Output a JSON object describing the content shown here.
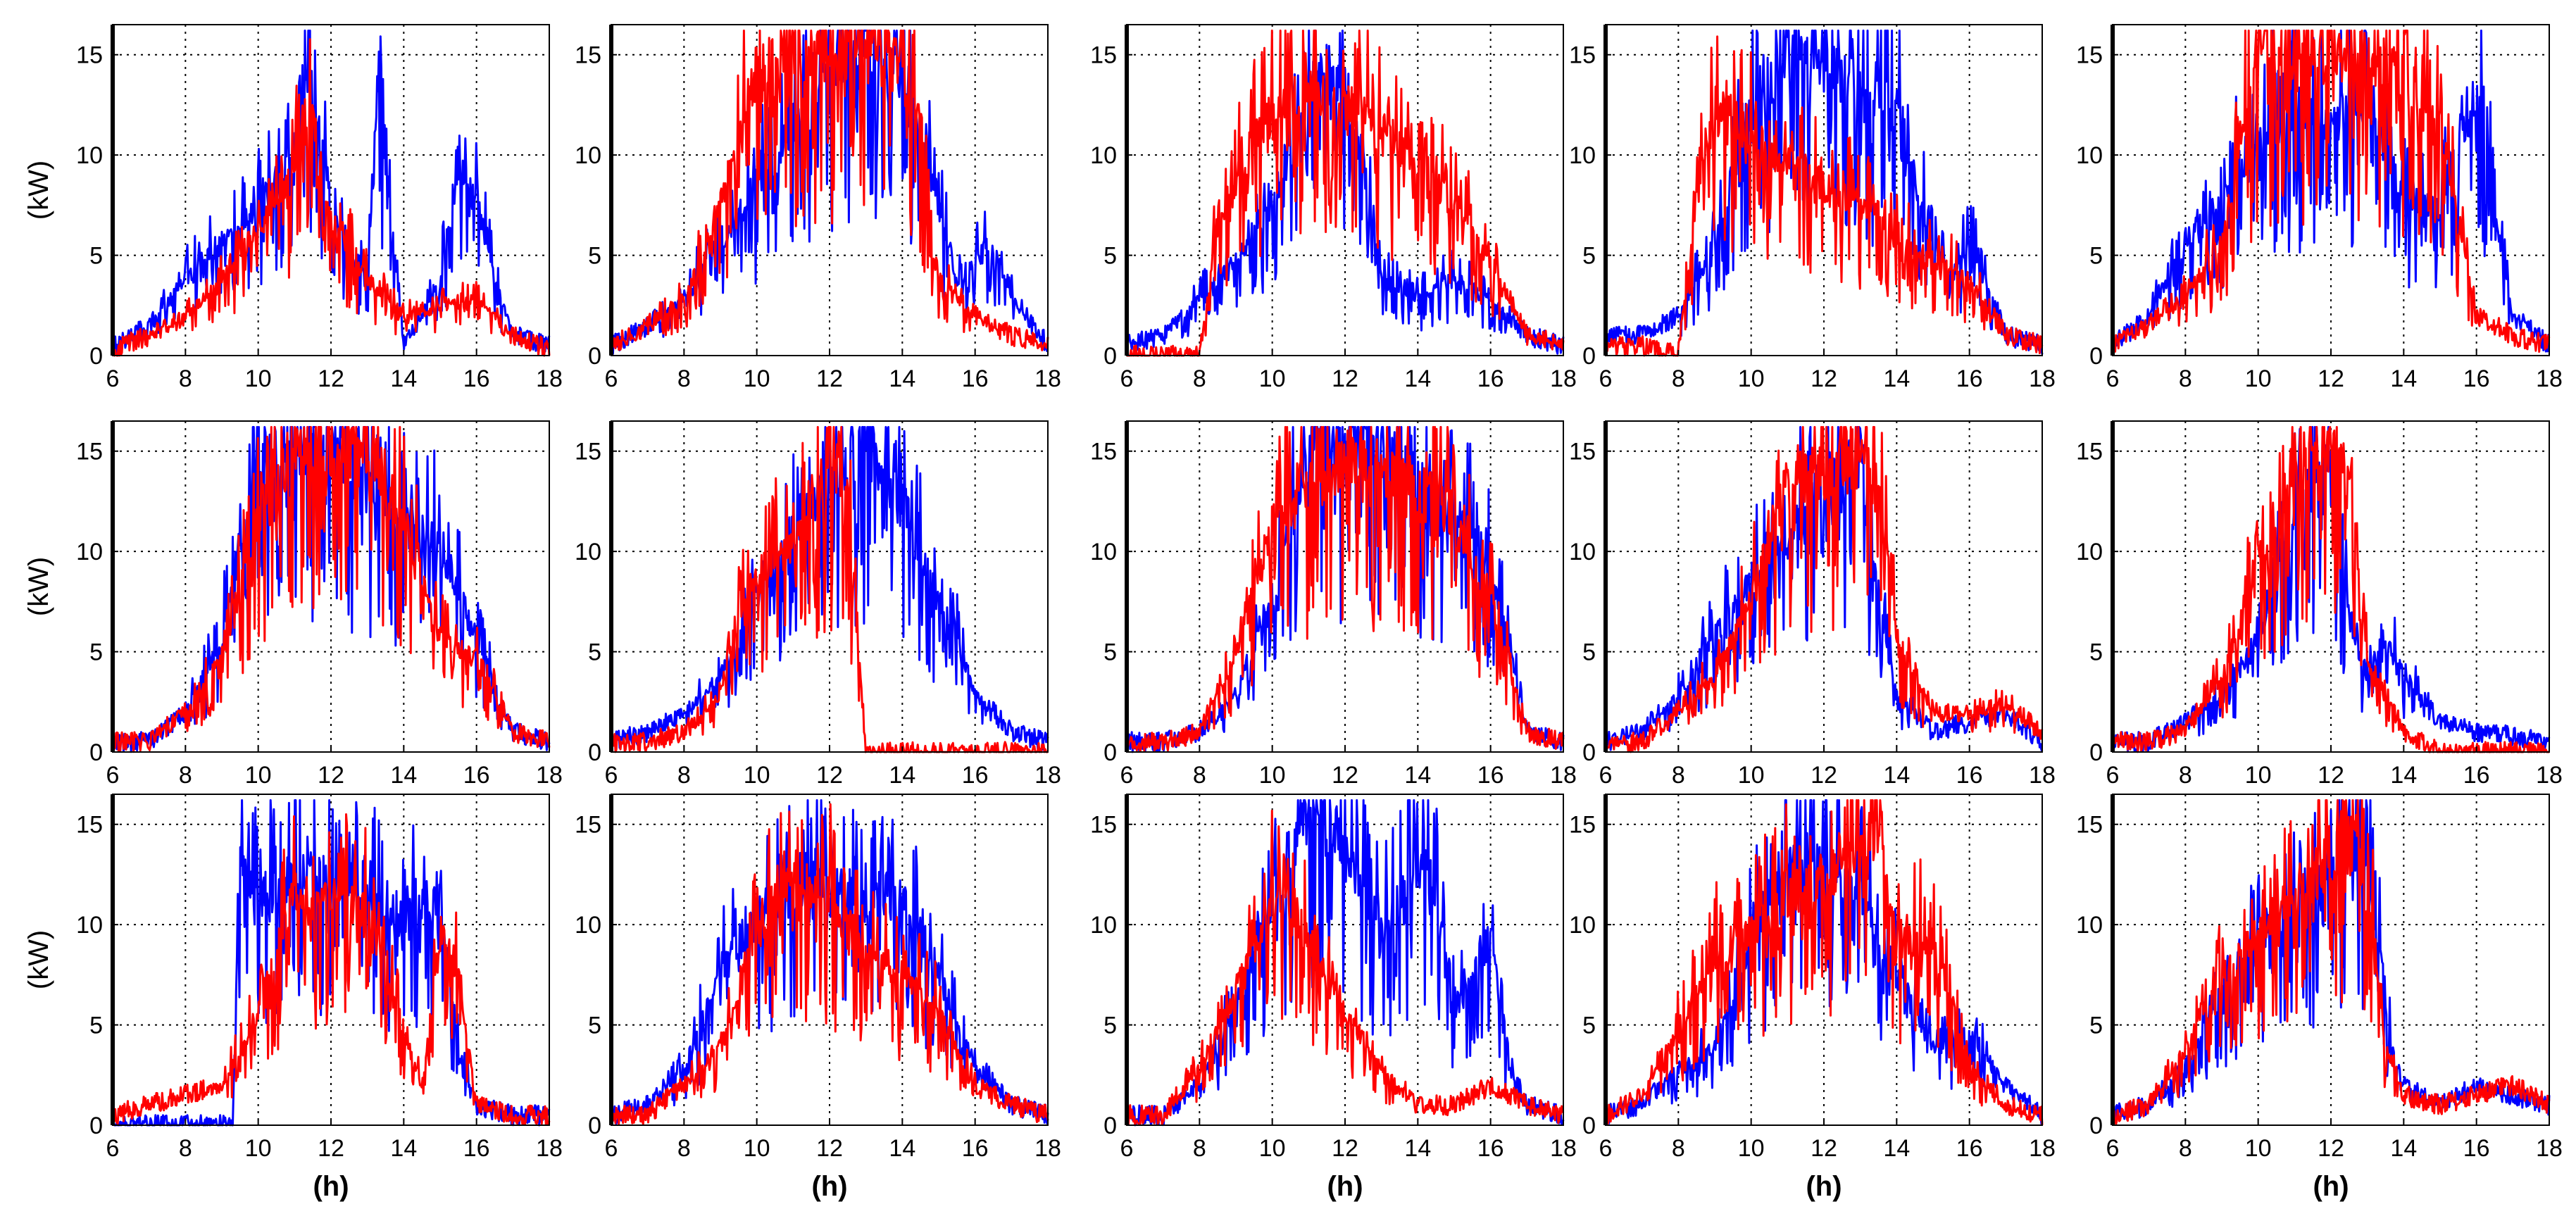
{
  "chart_data": {
    "type": "line",
    "layout": "3 rows x 5 columns of small-multiple line plots",
    "title": "",
    "ylabel": "(kW)",
    "xlabel": "(h)",
    "xlim": [
      6,
      18
    ],
    "ylim": [
      0,
      16.5
    ],
    "xticks": [
      6,
      8,
      10,
      12,
      14,
      16,
      18
    ],
    "yticks": [
      0,
      5,
      10,
      15
    ],
    "grid": "dotted, at x = 8,10,12,14,16 and y = 5,10,15",
    "series_colors": {
      "series_a": "#0000ff",
      "series_b": "#ff0000"
    },
    "note": "Each panel shows two highly fluctuating daily power profiles (blue and red) between 6 h and 18 h; values are approximate envelope readings.",
    "panels": [
      {
        "row": 1,
        "col": 1,
        "blue": {
          "x": [
            6,
            7,
            8,
            9,
            10,
            11,
            11.3,
            12,
            12.5,
            13,
            13.3,
            13.7,
            14,
            14.5,
            15,
            15.5,
            16,
            16.5,
            17,
            18
          ],
          "y": [
            0.5,
            1.5,
            4,
            6,
            8,
            10,
            16,
            8,
            5,
            4,
            15,
            6,
            0.5,
            2,
            4,
            10,
            8,
            4,
            1,
            0.5
          ]
        },
        "red": {
          "x": [
            6,
            7,
            8,
            9,
            10,
            11,
            11.5,
            12,
            13,
            14,
            15,
            16,
            17,
            18
          ],
          "y": [
            0.3,
            1,
            2,
            4,
            7,
            10,
            12,
            7,
            4,
            2,
            2.5,
            3,
            1,
            0.3
          ]
        }
      },
      {
        "row": 1,
        "col": 2,
        "blue": {
          "x": [
            6,
            7,
            8,
            9,
            10,
            11,
            12,
            13,
            14,
            15,
            15.5,
            16,
            16.5,
            17,
            18
          ],
          "y": [
            0.5,
            1.5,
            3,
            6,
            9,
            12,
            15,
            16,
            15,
            8,
            4,
            5,
            6,
            3,
            0.5
          ]
        },
        "red": {
          "x": [
            6,
            7,
            8,
            8.5,
            9,
            10,
            11,
            12,
            13,
            14,
            14.5,
            15,
            16,
            17,
            18
          ],
          "y": [
            0.5,
            1.5,
            3,
            5,
            8,
            15,
            16,
            16,
            16,
            15,
            12,
            4,
            2,
            1,
            0.5
          ]
        }
      },
      {
        "row": 1,
        "col": 3,
        "blue": {
          "x": [
            6,
            7,
            8,
            9,
            10,
            11,
            11.5,
            12,
            12.5,
            13,
            14,
            15,
            16,
            17,
            18
          ],
          "y": [
            0.5,
            1,
            3,
            5,
            8,
            13,
            15,
            14,
            10,
            4,
            3,
            4,
            3,
            1,
            0.5
          ]
        },
        "red": {
          "x": [
            6,
            8,
            8.5,
            9,
            10,
            11,
            12,
            13,
            14,
            15,
            16,
            17,
            18
          ],
          "y": [
            0,
            0,
            7,
            9,
            13,
            14,
            13,
            12,
            10,
            8,
            5,
            1,
            0.5
          ]
        }
      },
      {
        "row": 1,
        "col": 4,
        "blue": {
          "x": [
            6,
            7,
            8,
            9,
            10,
            11,
            12,
            13,
            14,
            15,
            15.5,
            16,
            17,
            18
          ],
          "y": [
            1,
            1,
            2,
            6,
            13,
            16,
            15,
            14,
            13,
            6,
            4,
            6,
            1,
            0.5
          ]
        },
        "red": {
          "x": [
            6,
            7,
            8,
            8.5,
            9,
            10,
            11,
            12,
            13,
            14,
            15,
            16,
            17,
            18
          ],
          "y": [
            0.5,
            0.5,
            0,
            8,
            13,
            12,
            10,
            9,
            8,
            6,
            5,
            4,
            1,
            0.5
          ]
        }
      },
      {
        "row": 1,
        "col": 5,
        "blue": {
          "x": [
            6,
            7,
            8,
            9,
            10,
            11,
            12,
            13,
            14,
            15,
            16,
            17,
            18
          ],
          "y": [
            0.5,
            2,
            6,
            8,
            12,
            13,
            12,
            14,
            8,
            8,
            14,
            2,
            0.5
          ]
        },
        "red": {
          "x": [
            6,
            7,
            8,
            9,
            10,
            11,
            12,
            13,
            14,
            15,
            16,
            17,
            18
          ],
          "y": [
            0.5,
            1.5,
            3,
            6,
            16,
            16,
            16,
            16,
            14,
            12,
            2,
            1,
            0.5
          ]
        }
      },
      {
        "row": 2,
        "col": 1,
        "blue": {
          "x": [
            6,
            7,
            8,
            9,
            10,
            11,
            12,
            13,
            14,
            15,
            16,
            17,
            18
          ],
          "y": [
            0.5,
            0.5,
            2,
            6,
            16,
            16,
            16,
            14,
            12,
            11,
            6,
            1,
            0.5
          ]
        },
        "red": {
          "x": [
            6,
            7,
            8,
            9,
            10,
            11,
            12,
            13,
            14,
            15,
            16,
            17,
            18
          ],
          "y": [
            0.5,
            0.5,
            2,
            5,
            12,
            16,
            16,
            16,
            12,
            6,
            5,
            1,
            0.5
          ]
        }
      },
      {
        "row": 2,
        "col": 2,
        "blue": {
          "x": [
            6,
            7,
            8,
            9,
            10,
            11,
            12,
            13,
            14,
            15,
            15.5,
            16,
            17,
            18
          ],
          "y": [
            0.5,
            1,
            2,
            4,
            8,
            12,
            14,
            16,
            13,
            8,
            6,
            3,
            1,
            0.5
          ]
        },
        "red": {
          "x": [
            6,
            7,
            8,
            9,
            9.5,
            10,
            11,
            12,
            12.5,
            13,
            14,
            15,
            16,
            17,
            18
          ],
          "y": [
            0.5,
            0.5,
            1,
            3,
            7,
            9,
            12,
            15,
            13,
            0,
            0,
            0,
            0,
            0,
            0
          ]
        }
      },
      {
        "row": 2,
        "col": 3,
        "blue": {
          "x": [
            6,
            7,
            8,
            9,
            10,
            11,
            12,
            13,
            14,
            15,
            16,
            17,
            18
          ],
          "y": [
            0.5,
            0.5,
            1,
            3,
            8,
            16,
            16,
            16,
            14,
            13,
            10,
            1,
            0.5
          ]
        },
        "red": {
          "x": [
            6,
            7,
            8,
            9,
            10,
            11,
            12,
            13,
            14,
            15,
            16,
            17,
            18
          ],
          "y": [
            0.5,
            0.5,
            1,
            5,
            12,
            14,
            15,
            15,
            14,
            12,
            8,
            1,
            0.5
          ]
        }
      },
      {
        "row": 2,
        "col": 4,
        "blue": {
          "x": [
            6,
            7,
            8,
            9,
            10,
            11,
            12,
            13,
            13.5,
            14,
            15,
            16,
            17,
            18
          ],
          "y": [
            0.5,
            1,
            3,
            6,
            9,
            11,
            14,
            16,
            8,
            3,
            1,
            1.5,
            2,
            0.5
          ]
        },
        "red": {
          "x": [
            6,
            7,
            8,
            9,
            10,
            11,
            12,
            13,
            13.5,
            14,
            15,
            16,
            17,
            18
          ],
          "y": [
            0.5,
            0.5,
            2,
            4,
            8,
            14,
            15,
            15,
            14,
            6,
            2,
            2,
            2.5,
            1
          ]
        }
      },
      {
        "row": 2,
        "col": 5,
        "blue": {
          "x": [
            6,
            7,
            8,
            9,
            10,
            11,
            11.5,
            12,
            12.5,
            13,
            13.5,
            14,
            15,
            16,
            17,
            18
          ],
          "y": [
            0.5,
            0.5,
            1.5,
            3,
            6,
            13,
            14,
            15,
            7,
            4,
            6,
            4,
            1.5,
            1,
            0.8,
            0.5
          ]
        },
        "red": {
          "x": [
            6,
            7,
            8,
            9,
            10,
            11,
            12,
            12.5,
            13,
            14,
            14.5,
            15,
            18
          ],
          "y": [
            0.5,
            0.5,
            1,
            4,
            10,
            15,
            16,
            14,
            5,
            1,
            0.5,
            0,
            0
          ]
        }
      },
      {
        "row": 3,
        "col": 1,
        "blue": {
          "x": [
            6,
            7,
            8,
            9,
            9.3,
            9.5,
            10,
            11,
            12,
            13,
            14,
            15,
            15.5,
            16,
            17,
            18
          ],
          "y": [
            0,
            0,
            0,
            0,
            0,
            14,
            12,
            13,
            13,
            12,
            11,
            12,
            4,
            1,
            0.5,
            0.5
          ]
        },
        "red": {
          "x": [
            6,
            7,
            8,
            9,
            10,
            11,
            12,
            13,
            14,
            14.5,
            15,
            15.5,
            16,
            17,
            18
          ],
          "y": [
            0.5,
            1,
            1.5,
            2,
            6,
            12,
            12,
            11,
            5,
            2,
            10,
            8,
            1,
            0.5,
            0.5
          ]
        }
      },
      {
        "row": 3,
        "col": 2,
        "blue": {
          "x": [
            6,
            7,
            8,
            9,
            10,
            11,
            12,
            13,
            14,
            15,
            16,
            17,
            18
          ],
          "y": [
            0.5,
            1,
            3,
            8,
            11,
            12,
            13,
            12,
            12,
            8,
            3,
            1,
            0.5
          ]
        },
        "red": {
          "x": [
            6,
            7,
            8,
            9,
            10,
            11,
            12,
            13,
            14,
            15,
            16,
            17,
            18
          ],
          "y": [
            0.5,
            0.5,
            2,
            4,
            10,
            13,
            12,
            9,
            8,
            6,
            2,
            1,
            0.5
          ]
        }
      },
      {
        "row": 3,
        "col": 3,
        "blue": {
          "x": [
            6,
            7,
            8,
            9,
            10,
            11,
            12,
            13,
            14,
            14.5,
            15,
            16,
            16.5,
            17,
            18
          ],
          "y": [
            0.5,
            0.5,
            2,
            6,
            12,
            16,
            15,
            10,
            14,
            12,
            6,
            10,
            3,
            1,
            0.5
          ]
        },
        "red": {
          "x": [
            6,
            7,
            8,
            9,
            10,
            11,
            12,
            13,
            14,
            15,
            16,
            17,
            18
          ],
          "y": [
            0.5,
            0.5,
            3,
            7,
            12,
            10,
            6,
            3,
            1,
            1,
            2,
            1,
            0.5
          ]
        }
      },
      {
        "row": 3,
        "col": 4,
        "blue": {
          "x": [
            6,
            7,
            8,
            9,
            10,
            11,
            12,
            13,
            14,
            15,
            16,
            17,
            18
          ],
          "y": [
            0.5,
            1,
            3,
            4,
            10,
            14,
            14,
            12,
            8,
            4,
            5,
            2,
            0.5
          ]
        },
        "red": {
          "x": [
            6,
            7,
            8,
            9,
            10,
            11,
            12,
            13,
            13.5,
            14,
            15,
            16,
            17,
            18
          ],
          "y": [
            0.5,
            1.5,
            5,
            9,
            10,
            12,
            13,
            14,
            16,
            10,
            10,
            3,
            1,
            0.5
          ]
        }
      },
      {
        "row": 3,
        "col": 5,
        "blue": {
          "x": [
            6,
            7,
            8,
            9,
            10,
            11,
            12,
            13,
            13.3,
            13.6,
            14,
            15,
            16,
            17,
            18
          ],
          "y": [
            0.5,
            1,
            3,
            7,
            10,
            11,
            13,
            14,
            10,
            5,
            2,
            1,
            2,
            1.5,
            1
          ]
        },
        "red": {
          "x": [
            6,
            7,
            8,
            9,
            10,
            11,
            12,
            12.5,
            13,
            13.5,
            14,
            15,
            16,
            17,
            18
          ],
          "y": [
            0.5,
            1,
            4,
            8,
            10,
            12,
            14,
            16,
            13,
            4,
            1.5,
            1,
            1.5,
            2,
            1
          ]
        }
      }
    ]
  }
}
